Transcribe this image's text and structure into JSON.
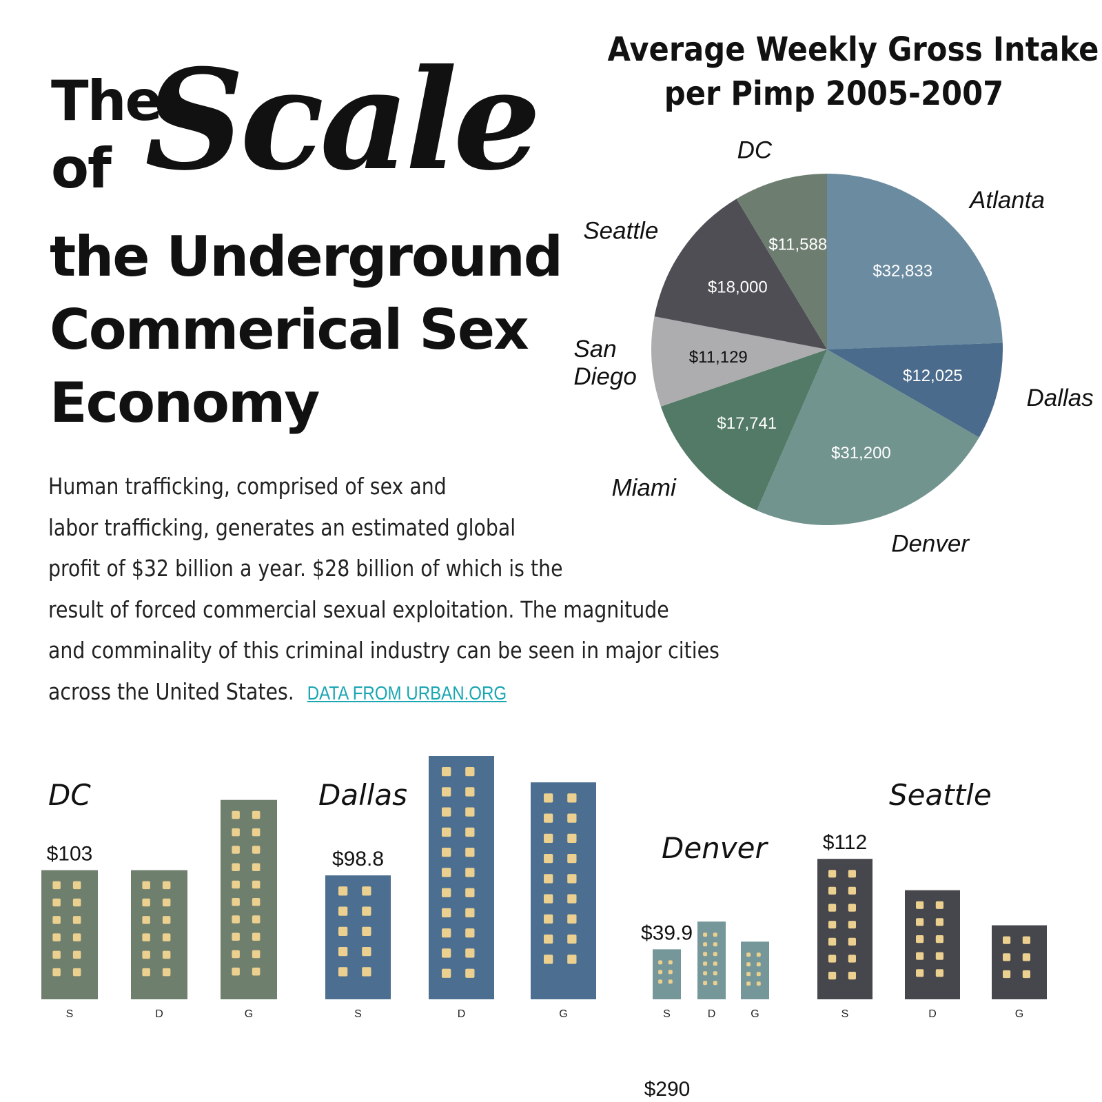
{
  "headline": {
    "the": "The",
    "scale": "Scale",
    "of": "of",
    "line3": "the Underground",
    "line4": "Commerical Sex",
    "line5": "Economy"
  },
  "description": {
    "lines": [
      "Human trafficking, comprised of sex and",
      "labor trafficking, generates an estimated global",
      "profit of $32 billion a year. $28 billion of which is the",
      "result of forced commercial sexual exploitation. The magnitude",
      "and comminality of this criminal industry can be seen in major cities",
      "across the United States."
    ],
    "source_link": "DATA FROM URBAN.ORG"
  },
  "chart_data": [
    {
      "type": "pie",
      "title": "Average Weekly Gross Intake per Pimp 2005-2007",
      "title_lines": [
        "Average Weekly Gross Intake",
        "per Pimp 2005-2007"
      ],
      "categories": [
        "Atlanta",
        "Dallas",
        "Denver",
        "Miami",
        "San Diego",
        "Seattle",
        "DC"
      ],
      "values": [
        32833,
        12025,
        31200,
        17741,
        11129,
        18000,
        11588
      ],
      "value_labels": [
        "$32,833",
        "$12,025",
        "$31,200",
        "$17,741",
        "$11,129",
        "$18,000",
        "$11,588"
      ],
      "colors": [
        "#6a8ba0",
        "#4a6b8c",
        "#72948f",
        "#527a66",
        "#adadaf",
        "#4e4e54",
        "#6d7e71"
      ],
      "label_dark": [
        false,
        false,
        false,
        false,
        true,
        false,
        false
      ]
    },
    {
      "type": "bar",
      "groups": [
        {
          "name": "DC",
          "categories": [
            "S",
            "D",
            "G"
          ],
          "values": [
            103,
            103,
            159
          ],
          "value_labels": [
            "$103",
            "",
            ""
          ],
          "color": "#6f7f6e"
        },
        {
          "name": "Dallas",
          "categories": [
            "S",
            "D",
            "G"
          ],
          "values": [
            98.8,
            194,
            173
          ],
          "value_labels": [
            "$98.8",
            "",
            ""
          ],
          "color": "#4c6e90"
        },
        {
          "name": "Denver",
          "categories": [
            "S",
            "D",
            "G"
          ],
          "values": [
            39.9,
            62,
            46
          ],
          "value_labels": [
            "$39.9",
            "",
            ""
          ],
          "color": "#75979a"
        },
        {
          "name": "Seattle",
          "categories": [
            "S",
            "D",
            "G"
          ],
          "values": [
            112,
            87,
            59
          ],
          "value_labels": [
            "$112",
            "",
            ""
          ],
          "color": "#46464d"
        }
      ],
      "window_color": "#ebd08f",
      "next_section_value": "$290"
    }
  ]
}
